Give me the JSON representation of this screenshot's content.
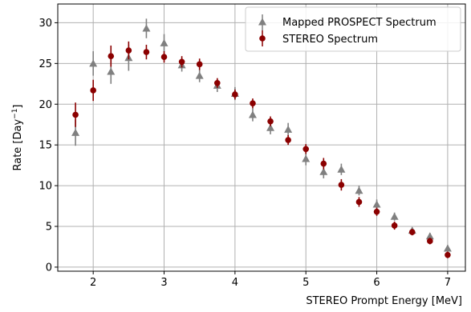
{
  "chart_data": {
    "type": "scatter",
    "xlabel": "STEREO Prompt Energy [MeV]",
    "ylabel_main": "Rate [Day",
    "ylabel_sup": "−1",
    "ylabel_close": "]",
    "xlim": [
      1.5,
      7.25
    ],
    "ylim": [
      -0.5,
      32.3
    ],
    "xticks": [
      2,
      3,
      4,
      5,
      6,
      7
    ],
    "yticks": [
      0,
      5,
      10,
      15,
      20,
      25,
      30
    ],
    "grid": true,
    "legend_position": "top-right",
    "series": [
      {
        "name": "Mapped PROSPECT Spectrum",
        "marker": "triangle",
        "color": "#808080",
        "x": [
          1.75,
          2.0,
          2.25,
          2.5,
          2.75,
          3.0,
          3.25,
          3.5,
          3.75,
          4.0,
          4.25,
          4.5,
          4.75,
          5.0,
          5.25,
          5.5,
          5.75,
          6.0,
          6.25,
          6.5,
          6.75,
          7.0
        ],
        "y": [
          16.5,
          25.0,
          24.0,
          25.7,
          29.3,
          27.5,
          24.8,
          23.5,
          22.3,
          21.3,
          18.7,
          17.1,
          16.9,
          13.3,
          11.7,
          12.0,
          9.4,
          7.7,
          6.2,
          4.5,
          3.8,
          2.3
        ],
        "err": [
          1.6,
          1.5,
          1.5,
          1.6,
          1.2,
          1.1,
          0.8,
          0.8,
          0.8,
          0.8,
          0.8,
          0.8,
          0.8,
          0.8,
          0.8,
          0.7,
          0.6,
          0.6,
          0.5,
          0.4,
          0.4,
          0.4
        ]
      },
      {
        "name": "STEREO Spectrum",
        "marker": "circle",
        "color": "#8b0000",
        "x": [
          1.75,
          2.0,
          2.25,
          2.5,
          2.75,
          3.0,
          3.25,
          3.5,
          3.75,
          4.0,
          4.25,
          4.5,
          4.75,
          5.0,
          5.25,
          5.5,
          5.75,
          6.0,
          6.25,
          6.5,
          6.75,
          7.0
        ],
        "y": [
          18.7,
          21.7,
          25.9,
          26.6,
          26.4,
          25.8,
          25.2,
          24.9,
          22.6,
          21.2,
          20.1,
          17.9,
          15.6,
          14.5,
          12.7,
          10.1,
          8.0,
          6.8,
          5.1,
          4.3,
          3.2,
          1.5
        ],
        "err": [
          1.5,
          1.3,
          1.3,
          1.1,
          0.9,
          0.7,
          0.7,
          0.7,
          0.6,
          0.6,
          0.6,
          0.6,
          0.6,
          0.6,
          0.7,
          0.7,
          0.6,
          0.5,
          0.5,
          0.4,
          0.4,
          0.4
        ]
      }
    ]
  }
}
